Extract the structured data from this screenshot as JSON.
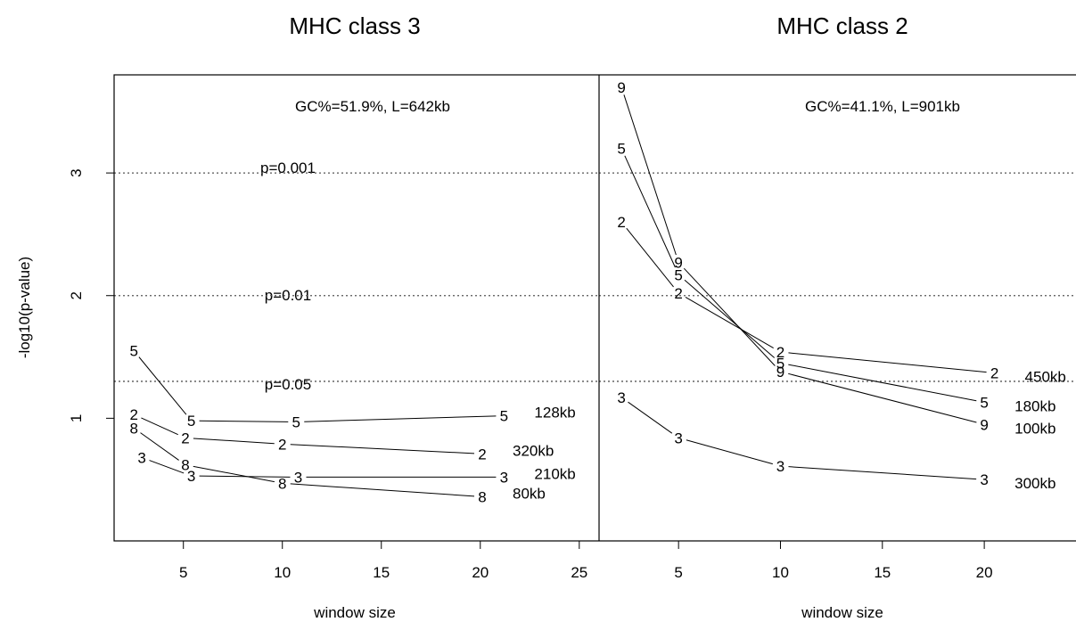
{
  "chart_data": [
    {
      "type": "line",
      "title": "MHC class 3",
      "xlabel": "window size",
      "ylabel": "-log10(p-value)",
      "xticks": [
        5,
        10,
        15,
        20,
        25
      ],
      "yticks": [
        1,
        2,
        3
      ],
      "xlim": [
        1.5,
        26
      ],
      "ylim": [
        0,
        3.8
      ],
      "annotation": "GC%=51.9%, L=642kb",
      "reference_lines": [
        {
          "y": 3.0,
          "label": "p=0.001"
        },
        {
          "y": 2.0,
          "label": "p=0.01"
        },
        {
          "y": 1.301,
          "label": "p=0.05"
        }
      ],
      "series": [
        {
          "name": "128kb",
          "marker": "5",
          "x": [
            2.5,
            5.4,
            10.7,
            21.2
          ],
          "y": [
            1.55,
            0.98,
            0.97,
            1.02
          ]
        },
        {
          "name": "320kb",
          "marker": "2",
          "x": [
            2.5,
            5.1,
            10.0,
            20.1
          ],
          "y": [
            1.03,
            0.84,
            0.79,
            0.71
          ]
        },
        {
          "name": "210kb",
          "marker": "3",
          "x": [
            2.9,
            5.4,
            10.8,
            21.2
          ],
          "y": [
            0.68,
            0.53,
            0.52,
            0.52
          ]
        },
        {
          "name": "80kb",
          "marker": "8",
          "x": [
            2.5,
            5.1,
            10.0,
            20.1
          ],
          "y": [
            0.92,
            0.62,
            0.47,
            0.36
          ]
        }
      ]
    },
    {
      "type": "line",
      "title": "MHC class 2",
      "xlabel": "window size",
      "ylabel": "",
      "xticks": [
        5,
        10,
        15,
        20
      ],
      "yticks": [
        1,
        2,
        3
      ],
      "xlim": [
        1.1,
        24.5
      ],
      "ylim": [
        0,
        3.8
      ],
      "annotation": "GC%=41.1%, L=901kb",
      "reference_lines": [
        {
          "y": 3.0,
          "label": ""
        },
        {
          "y": 2.0,
          "label": ""
        },
        {
          "y": 1.301,
          "label": ""
        }
      ],
      "series": [
        {
          "name": "450kb",
          "marker": "2",
          "x": [
            2.2,
            5.0,
            10.0,
            20.5
          ],
          "y": [
            2.6,
            2.02,
            1.54,
            1.37
          ]
        },
        {
          "name": "180kb",
          "marker": "5",
          "x": [
            2.2,
            5.0,
            10.0,
            20.0
          ],
          "y": [
            3.2,
            2.17,
            1.45,
            1.13
          ]
        },
        {
          "name": "100kb",
          "marker": "9",
          "x": [
            2.2,
            5.0,
            10.0,
            20.0
          ],
          "y": [
            3.7,
            2.27,
            1.38,
            0.95
          ]
        },
        {
          "name": "300kb",
          "marker": "3",
          "x": [
            2.2,
            5.0,
            10.0,
            20.0
          ],
          "y": [
            1.17,
            0.84,
            0.61,
            0.5
          ]
        }
      ]
    }
  ]
}
